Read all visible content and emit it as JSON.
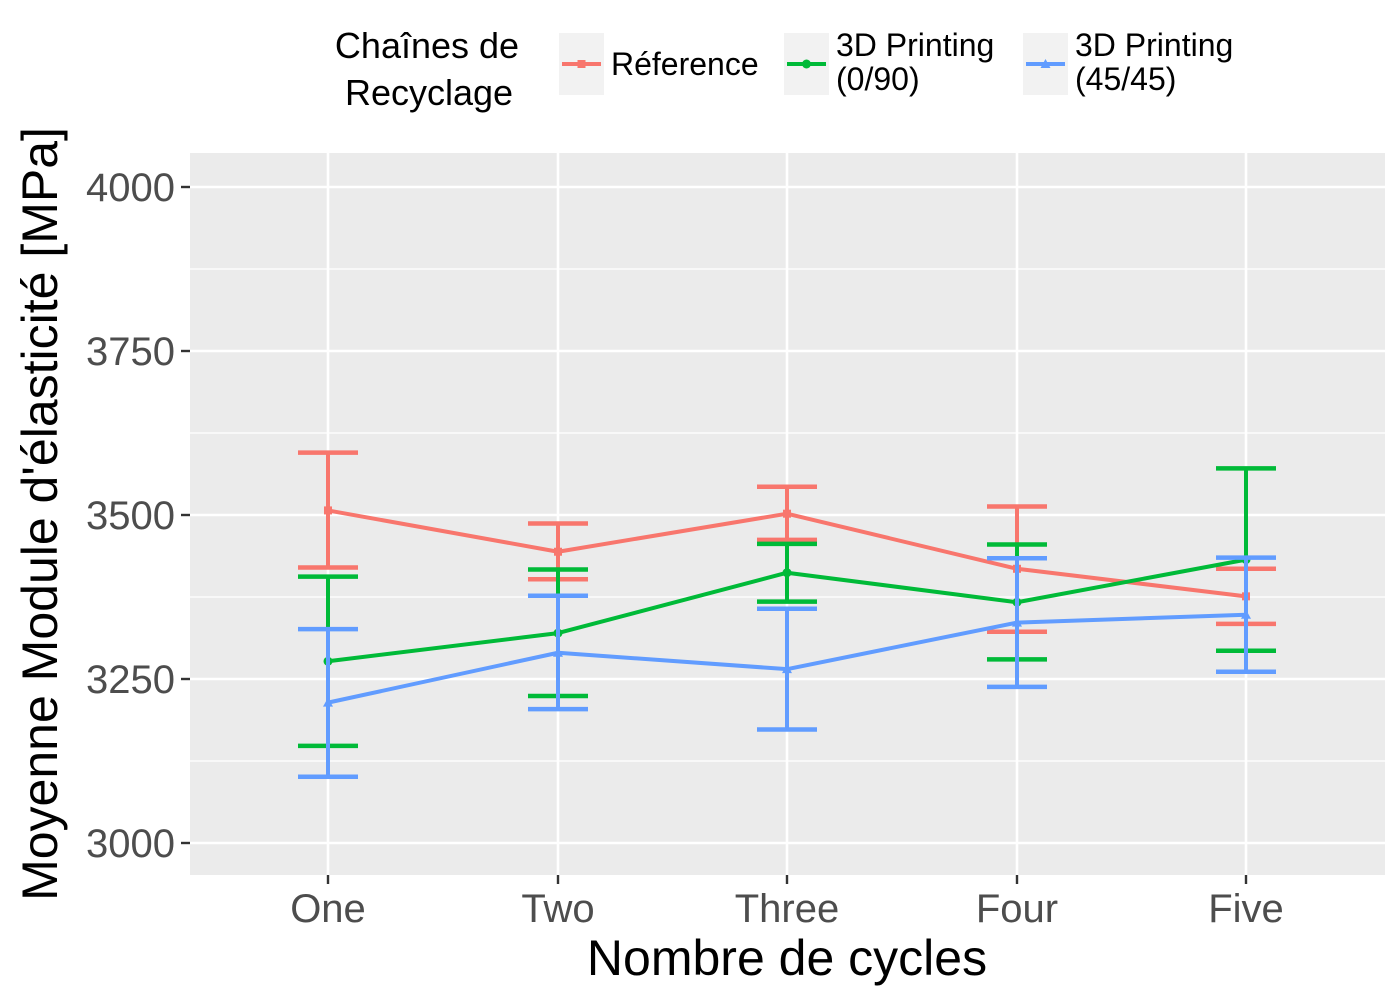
{
  "chart_data": {
    "type": "line",
    "title": "",
    "xlabel": "Nombre de cycles",
    "ylabel": "Moyenne Module d'élasticité [MPa]",
    "categories": [
      "One",
      "Two",
      "Three",
      "Four",
      "Five"
    ],
    "yticks": [
      "3000",
      "3250",
      "3500",
      "3750",
      "4000"
    ],
    "ylim": [
      2950,
      4050
    ],
    "grid": true,
    "legend": {
      "title_lines": [
        "Chaînes de",
        "Recyclage"
      ],
      "placement": "top"
    },
    "series": [
      {
        "name": "Réference",
        "name_lines": [
          "Réference"
        ],
        "color": "#F8766D",
        "marker": "square",
        "values": [
          3507,
          3444,
          3502,
          3418,
          3376
        ],
        "error_low": [
          3420,
          3402,
          3462,
          3322,
          3334
        ],
        "error_high": [
          3595,
          3487,
          3543,
          3513,
          3418
        ]
      },
      {
        "name": "3D Printing (0/90)",
        "name_lines": [
          "3D Printing",
          "(0/90)"
        ],
        "color": "#00BA38",
        "marker": "circle",
        "values": [
          3277,
          3320,
          3412,
          3367,
          3432
        ],
        "error_low": [
          3148,
          3224,
          3368,
          3280,
          3293
        ],
        "error_high": [
          3406,
          3417,
          3456,
          3455,
          3571
        ]
      },
      {
        "name": "3D Printing (45/45)",
        "name_lines": [
          "3D Printing",
          "(45/45)"
        ],
        "color": "#619CFF",
        "marker": "triangle",
        "values": [
          3214,
          3290,
          3265,
          3336,
          3348
        ],
        "error_low": [
          3101,
          3204,
          3173,
          3238,
          3261
        ],
        "error_high": [
          3326,
          3377,
          3357,
          3434,
          3435
        ]
      }
    ]
  }
}
